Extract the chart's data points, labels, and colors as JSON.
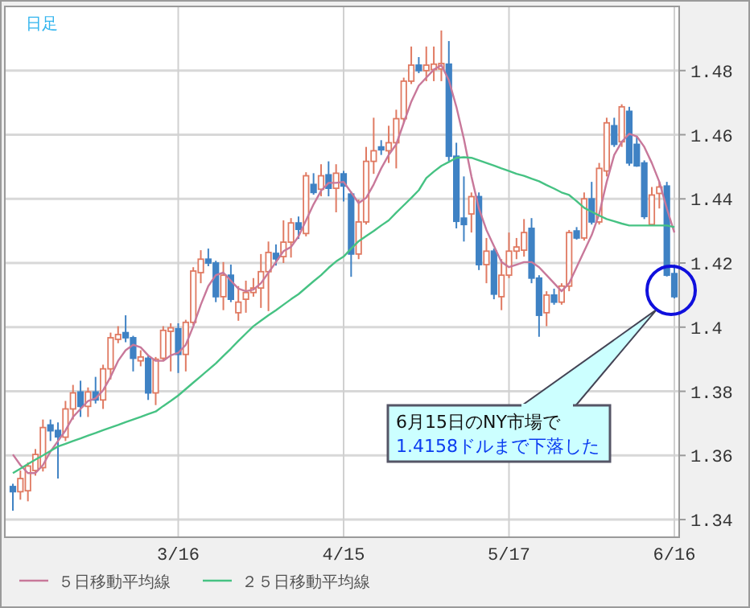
{
  "chart_data": {
    "type": "candlestick",
    "title": "日足",
    "categories": [
      null,
      null,
      null,
      null,
      null,
      null,
      null,
      null,
      null,
      null,
      null,
      null,
      null,
      null,
      null,
      null,
      null,
      null,
      null,
      null,
      null,
      null,
      "3/16",
      null,
      null,
      null,
      null,
      null,
      null,
      null,
      null,
      null,
      null,
      null,
      null,
      null,
      null,
      null,
      null,
      null,
      null,
      null,
      null,
      null,
      "4/15",
      null,
      null,
      null,
      null,
      null,
      null,
      null,
      null,
      null,
      null,
      null,
      null,
      null,
      null,
      null,
      null,
      null,
      null,
      null,
      null,
      null,
      "5/17",
      null,
      null,
      null,
      null,
      null,
      null,
      null,
      null,
      null,
      null,
      null,
      null,
      null,
      null,
      null,
      null,
      null,
      null,
      null,
      null,
      null,
      "6/16"
    ],
    "ohlc": [
      [
        1.3503,
        1.3512,
        1.3428,
        1.3487
      ],
      [
        1.3487,
        1.3553,
        1.3462,
        1.3528
      ],
      [
        1.349,
        1.3578,
        1.3457,
        1.3567
      ],
      [
        1.3553,
        1.362,
        1.3537,
        1.3603
      ],
      [
        1.3562,
        1.3712,
        1.355,
        1.3687
      ],
      [
        1.3695,
        1.3712,
        1.3645,
        1.3677
      ],
      [
        1.3678,
        1.3703,
        1.3528,
        1.3658
      ],
      [
        1.3657,
        1.377,
        1.3645,
        1.3745
      ],
      [
        1.3745,
        1.382,
        1.3712,
        1.3795
      ],
      [
        1.3798,
        1.3833,
        1.372,
        1.3753
      ],
      [
        1.3753,
        1.3812,
        1.372,
        1.3798
      ],
      [
        1.3798,
        1.3845,
        1.3762,
        1.3773
      ],
      [
        1.3773,
        1.3883,
        1.3745,
        1.387
      ],
      [
        1.387,
        1.3983,
        1.3837,
        1.3967
      ],
      [
        1.3962,
        1.4003,
        1.395,
        1.3977
      ],
      [
        1.3983,
        1.4037,
        1.3953,
        1.3967
      ],
      [
        1.3967,
        1.3973,
        1.3862,
        1.3903
      ],
      [
        1.3895,
        1.3928,
        1.3878,
        1.3907
      ],
      [
        1.3903,
        1.3912,
        1.3773,
        1.3795
      ],
      [
        1.3795,
        1.3907,
        1.3757,
        1.39
      ],
      [
        1.3903,
        1.4003,
        1.3895,
        1.399
      ],
      [
        1.3987,
        1.4012,
        1.3862,
        1.3998
      ],
      [
        1.3995,
        1.4012,
        1.3857,
        1.3915
      ],
      [
        1.3915,
        1.4023,
        1.3862,
        1.4015
      ],
      [
        1.4015,
        1.4187,
        1.4007,
        1.4175
      ],
      [
        1.417,
        1.424,
        1.4137,
        1.4212
      ],
      [
        1.4212,
        1.4245,
        1.419,
        1.42
      ],
      [
        1.42,
        1.4207,
        1.4078,
        1.4095
      ],
      [
        1.4095,
        1.4203,
        1.4053,
        1.4162
      ],
      [
        1.4162,
        1.4195,
        1.4078,
        1.4087
      ],
      [
        1.4045,
        1.4128,
        1.402,
        1.4078
      ],
      [
        1.4087,
        1.4145,
        1.4045,
        1.4108
      ],
      [
        1.4108,
        1.4153,
        1.4095,
        1.4122
      ],
      [
        1.4122,
        1.4228,
        1.406,
        1.4173
      ],
      [
        1.4173,
        1.4267,
        1.405,
        1.4233
      ],
      [
        1.423,
        1.4258,
        1.4192,
        1.4213
      ],
      [
        1.422,
        1.4333,
        1.42,
        1.4265
      ],
      [
        1.4265,
        1.434,
        1.4217,
        1.4325
      ],
      [
        1.4325,
        1.4345,
        1.4275,
        1.4305
      ],
      [
        1.4292,
        1.4483,
        1.4283,
        1.4472
      ],
      [
        1.4445,
        1.448,
        1.4413,
        1.442
      ],
      [
        1.443,
        1.4508,
        1.4408,
        1.4472
      ],
      [
        1.4475,
        1.4517,
        1.4408,
        1.4433
      ],
      [
        1.4433,
        1.4508,
        1.4358,
        1.448
      ],
      [
        1.4478,
        1.4487,
        1.4392,
        1.444
      ],
      [
        1.4415,
        1.4423,
        1.4157,
        1.4228
      ],
      [
        1.4228,
        1.4398,
        1.4212,
        1.4328
      ],
      [
        1.4328,
        1.4562,
        1.432,
        1.4517
      ],
      [
        1.4517,
        1.4653,
        1.4478,
        1.455
      ],
      [
        1.4562,
        1.4583,
        1.4537,
        1.4553
      ],
      [
        1.455,
        1.4628,
        1.4512,
        1.4575
      ],
      [
        1.4575,
        1.4678,
        1.4495,
        1.465
      ],
      [
        1.465,
        1.4778,
        1.4637,
        1.4767
      ],
      [
        1.4767,
        1.4875,
        1.4758,
        1.4817
      ],
      [
        1.4817,
        1.4842,
        1.4792,
        1.48
      ],
      [
        1.48,
        1.4875,
        1.4767,
        1.4817
      ],
      [
        1.4803,
        1.4875,
        1.4767,
        1.482
      ],
      [
        1.4805,
        1.4925,
        1.4767,
        1.4822
      ],
      [
        1.482,
        1.4892,
        1.4517,
        1.4533
      ],
      [
        1.4533,
        1.4575,
        1.4308,
        1.433
      ],
      [
        1.434,
        1.447,
        1.4267,
        1.432
      ],
      [
        1.4353,
        1.442,
        1.4295,
        1.4407
      ],
      [
        1.4407,
        1.442,
        1.4178,
        1.4195
      ],
      [
        1.4195,
        1.4278,
        1.4137,
        1.4237
      ],
      [
        1.4237,
        1.4245,
        1.4087,
        1.4103
      ],
      [
        1.4095,
        1.4212,
        1.4053,
        1.4162
      ],
      [
        1.4162,
        1.4295,
        1.4153,
        1.4237
      ],
      [
        1.4237,
        1.4278,
        1.4212,
        1.425
      ],
      [
        1.424,
        1.4337,
        1.422,
        1.4295
      ],
      [
        1.4308,
        1.434,
        1.4137,
        1.4153
      ],
      [
        1.4153,
        1.4162,
        1.397,
        1.4037
      ],
      [
        1.4045,
        1.4112,
        1.4003,
        1.41
      ],
      [
        1.41,
        1.412,
        1.407,
        1.4078
      ],
      [
        1.4078,
        1.4137,
        1.407,
        1.4128
      ],
      [
        1.4128,
        1.4303,
        1.4112,
        1.4295
      ],
      [
        1.43,
        1.4312,
        1.4273,
        1.4278
      ],
      [
        1.4278,
        1.442,
        1.427,
        1.44
      ],
      [
        1.44,
        1.4453,
        1.432,
        1.4328
      ],
      [
        1.4328,
        1.4512,
        1.432,
        1.4495
      ],
      [
        1.4487,
        1.4653,
        1.447,
        1.4637
      ],
      [
        1.4628,
        1.4653,
        1.4562,
        1.457
      ],
      [
        1.4578,
        1.4695,
        1.4562,
        1.4687
      ],
      [
        1.4673,
        1.4687,
        1.4503,
        1.4512
      ],
      [
        1.457,
        1.4595,
        1.45,
        1.4503
      ],
      [
        1.4512,
        1.452,
        1.4337,
        1.4345
      ],
      [
        1.432,
        1.4437,
        1.4317,
        1.4412
      ],
      [
        1.4417,
        1.4453,
        1.437,
        1.4437
      ],
      [
        1.444,
        1.4453,
        1.4158,
        1.4162
      ],
      [
        1.4167,
        1.4195,
        1.409,
        1.4095
      ]
    ],
    "colors": [
      "#3f82c4",
      "#e07a62",
      "#e07a62",
      "#e07a62",
      "#e07a62",
      "#3f82c4",
      "#3f82c4",
      "#e07a62",
      "#e07a62",
      "#3f82c4",
      "#e07a62",
      "#3f82c4",
      "#e07a62",
      "#e07a62",
      "#e07a62",
      "#3f82c4",
      "#3f82c4",
      "#e07a62",
      "#3f82c4",
      "#e07a62",
      "#e07a62",
      "#e07a62",
      "#3f82c4",
      "#e07a62",
      "#e07a62",
      "#e07a62",
      "#3f82c4",
      "#3f82c4",
      "#e07a62",
      "#3f82c4",
      "#e07a62",
      "#e07a62",
      "#e07a62",
      "#e07a62",
      "#e07a62",
      "#3f82c4",
      "#e07a62",
      "#e07a62",
      "#3f82c4",
      "#e07a62",
      "#3f82c4",
      "#e07a62",
      "#3f82c4",
      "#e07a62",
      "#3f82c4",
      "#3f82c4",
      "#e07a62",
      "#e07a62",
      "#e07a62",
      "#3f82c4",
      "#e07a62",
      "#e07a62",
      "#e07a62",
      "#e07a62",
      "#3f82c4",
      "#e07a62",
      "#e07a62",
      "#e07a62",
      "#3f82c4",
      "#3f82c4",
      "#3f82c4",
      "#e07a62",
      "#3f82c4",
      "#e07a62",
      "#3f82c4",
      "#e07a62",
      "#e07a62",
      "#e07a62",
      "#e07a62",
      "#3f82c4",
      "#3f82c4",
      "#e07a62",
      "#3f82c4",
      "#e07a62",
      "#e07a62",
      "#3f82c4",
      "#e07a62",
      "#3f82c4",
      "#e07a62",
      "#e07a62",
      "#3f82c4",
      "#e07a62",
      "#3f82c4",
      "#3f82c4",
      "#3f82c4",
      "#e07a62",
      "#e07a62",
      "#3f82c4",
      "#3f82c4"
    ],
    "series": [
      {
        "name": "５日移動平均線",
        "type": "line",
        "color": "#c8789a",
        "values": [
          1.3603,
          1.357,
          1.3545,
          1.3545,
          1.357,
          1.3612,
          1.3645,
          1.3678,
          1.372,
          1.3745,
          1.377,
          1.3778,
          1.3803,
          1.3845,
          1.3895,
          1.3928,
          1.3945,
          1.3937,
          1.3912,
          1.3895,
          1.3895,
          1.3912,
          1.392,
          1.3945,
          1.4003,
          1.407,
          1.4128,
          1.4162,
          1.417,
          1.4145,
          1.412,
          1.4112,
          1.4117,
          1.4137,
          1.417,
          1.4203,
          1.4237,
          1.425,
          1.4283,
          1.4333,
          1.4383,
          1.4425,
          1.445,
          1.445,
          1.4453,
          1.442,
          1.4387,
          1.4403,
          1.4445,
          1.4495,
          1.4537,
          1.457,
          1.4637,
          1.4703,
          1.4753,
          1.4778,
          1.4803,
          1.4817,
          1.477,
          1.4687,
          1.4587,
          1.447,
          1.437,
          1.4303,
          1.4253,
          1.4203,
          1.4187,
          1.4195,
          1.4203,
          1.4203,
          1.4187,
          1.4162,
          1.4137,
          1.4112,
          1.4137,
          1.4187,
          1.4237,
          1.4287,
          1.4353,
          1.4453,
          1.4537,
          1.4578,
          1.4603,
          1.4595,
          1.4562,
          1.4512,
          1.4453,
          1.437,
          1.4295
        ]
      },
      {
        "name": "２５日移動平均線",
        "type": "line",
        "color": "#46c283",
        "values": [
          1.3545,
          1.3559,
          1.3573,
          1.3587,
          1.36,
          1.3614,
          1.3628,
          1.3636,
          1.3645,
          1.3653,
          1.3662,
          1.367,
          1.3679,
          1.3687,
          1.3695,
          1.3704,
          1.3712,
          1.372,
          1.3729,
          1.3737,
          1.3754,
          1.377,
          1.3787,
          1.3807,
          1.3827,
          1.3847,
          1.3867,
          1.3887,
          1.391,
          1.3933,
          1.3957,
          1.398,
          1.4003,
          1.402,
          1.4037,
          1.4053,
          1.407,
          1.4087,
          1.4103,
          1.4123,
          1.4143,
          1.4162,
          1.4185,
          1.4205,
          1.422,
          1.4245,
          1.4268,
          1.4284,
          1.43,
          1.4317,
          1.4333,
          1.4357,
          1.438,
          1.4403,
          1.4427,
          1.4465,
          1.4485,
          1.4503,
          1.4515,
          1.4528,
          1.453,
          1.4528,
          1.452,
          1.4512,
          1.4504,
          1.4495,
          1.4487,
          1.4478,
          1.4472,
          1.4463,
          1.4455,
          1.4443,
          1.4432,
          1.442,
          1.4412,
          1.4393,
          1.4372,
          1.436,
          1.4348,
          1.4337,
          1.433,
          1.4323,
          1.4317,
          1.4317,
          1.4317,
          1.4317,
          1.4317,
          1.4317,
          1.4312
        ]
      }
    ],
    "ylim": [
      1.3345,
      1.5
    ],
    "yticks": [
      1.34,
      1.36,
      1.38,
      1.4,
      1.42,
      1.44,
      1.46,
      1.48
    ],
    "grid": true,
    "legend": "bottom",
    "annotations": [
      "6月15日のNY市場で",
      "1.4158ドルまで下落した"
    ]
  }
}
